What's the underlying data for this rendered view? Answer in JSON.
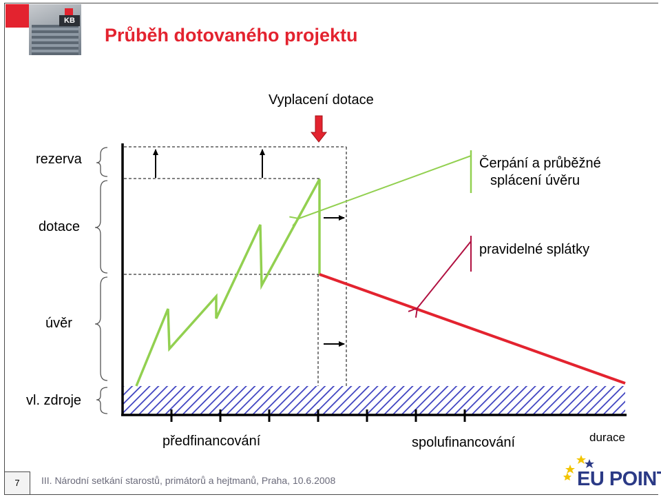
{
  "header": {
    "title": "Průběh dotovaného projektu"
  },
  "diagram": {
    "top_label": "Vyplacení dotace",
    "left_labels": {
      "rezerva": "rezerva",
      "dotace": "dotace",
      "uver": "úvěr",
      "vl_zdroje": "vl. zdroje"
    },
    "annotations": {
      "cerpani_line1": "Čerpání a průběžné",
      "cerpani_line2": "splácení úvěru",
      "splatky": "pravidelné splátky"
    },
    "phases": {
      "predfinancovani": "předfinancování",
      "spolufinancovani": "spolufinancování"
    },
    "axis_label": "durace",
    "colors": {
      "drawdown": "#92d050",
      "repayment": "#e3232f",
      "pointer_green": "#92d050",
      "pointer_red": "#b01040",
      "subsidy_arrow": "#e3232f",
      "hatch": "#3b3fbf"
    }
  },
  "footer": {
    "page_number": "7",
    "text": "III. Národní setkání starostů, primátorů a hejtmanů, Praha, 10.6.2008",
    "brand": "EU POINT"
  }
}
